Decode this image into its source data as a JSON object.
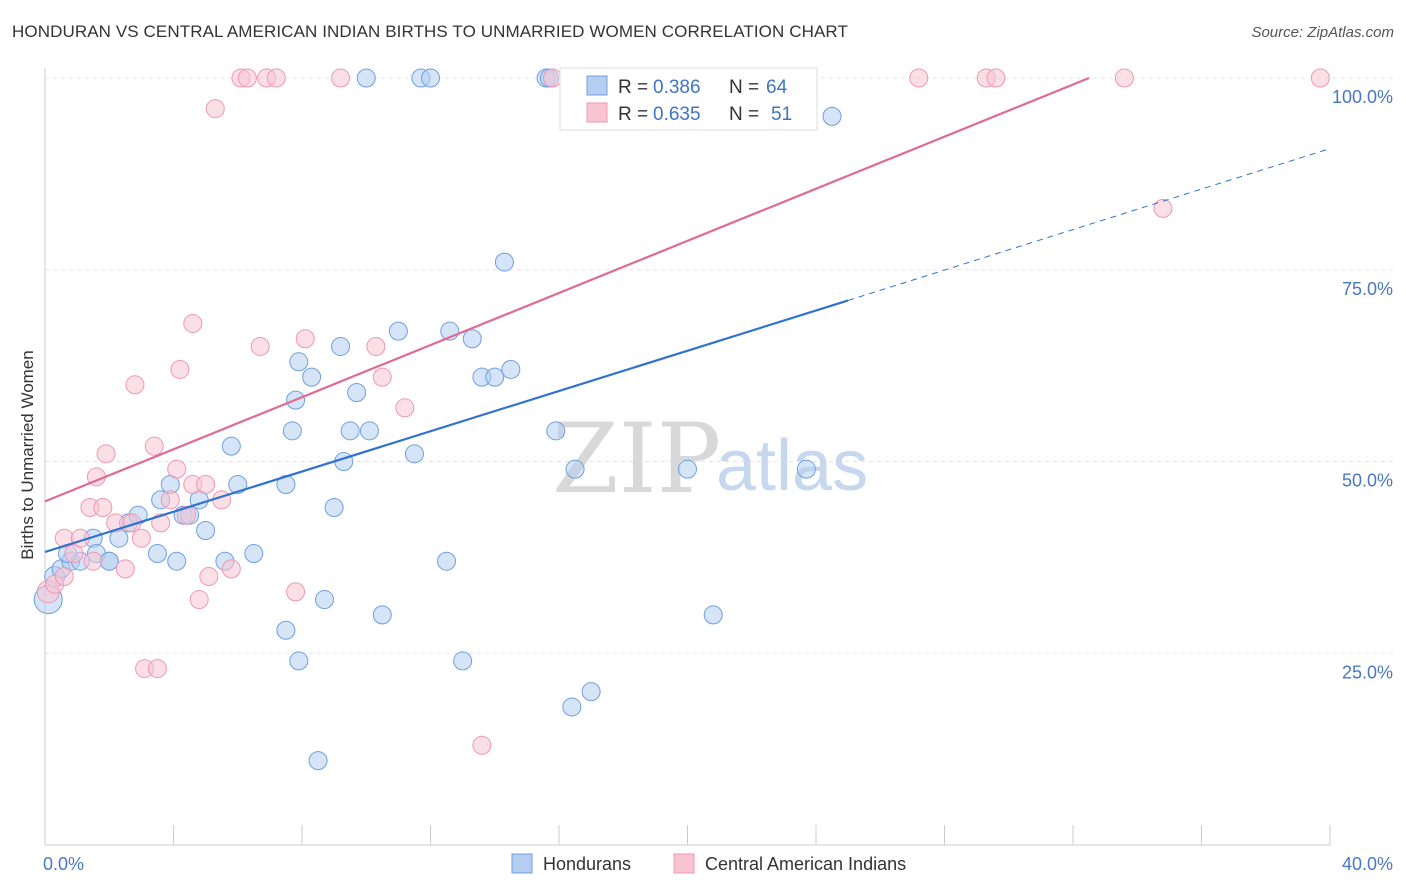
{
  "title": "HONDURAN VS CENTRAL AMERICAN INDIAN BIRTHS TO UNMARRIED WOMEN CORRELATION CHART",
  "source": "Source: ZipAtlas.com",
  "watermark": {
    "zip": "ZIP",
    "atlas": "atlas"
  },
  "chart_data": {
    "type": "scatter",
    "title": "HONDURAN VS CENTRAL AMERICAN INDIAN BIRTHS TO UNMARRIED WOMEN CORRELATION CHART",
    "xlabel": "",
    "ylabel": "Births to Unmarried Women",
    "xlim": [
      0,
      40
    ],
    "ylim": [
      0,
      100
    ],
    "x_tick_labels": [
      "0.0%",
      "40.0%"
    ],
    "y_ticks": [
      25,
      50,
      75,
      100
    ],
    "y_tick_labels": [
      "25.0%",
      "50.0%",
      "75.0%",
      "100.0%"
    ],
    "legend_stats": [
      {
        "r_label": "R =",
        "r_value": "0.386",
        "n_label": "N =",
        "n_value": "64"
      },
      {
        "r_label": "R =",
        "r_value": "0.635",
        "n_label": "N =",
        "n_value": "51"
      }
    ],
    "series": [
      {
        "name": "Hondurans",
        "color": "#6f9fe0",
        "fill": "#b5cdf1",
        "line_color": "#2f72cf",
        "r": 0.386,
        "n": 64,
        "trend": {
          "x0": 0,
          "y0": 38.2,
          "x1": 25,
          "y1": 71.0,
          "dash_x1": 40,
          "dash_y1": 90.8
        },
        "points": [
          [
            0.1,
            32,
            14
          ],
          [
            0.3,
            35,
            10
          ],
          [
            0.5,
            36,
            9
          ],
          [
            0.8,
            37,
            9
          ],
          [
            1.1,
            37,
            9
          ],
          [
            1.5,
            40,
            9
          ],
          [
            1.6,
            38,
            9
          ],
          [
            2.0,
            37,
            9
          ],
          [
            2.3,
            40,
            9
          ],
          [
            2.6,
            42,
            9
          ],
          [
            2.9,
            43,
            9
          ],
          [
            3.5,
            38,
            9
          ],
          [
            3.6,
            45,
            9
          ],
          [
            3.9,
            47,
            9
          ],
          [
            4.3,
            43,
            9
          ],
          [
            4.5,
            43,
            9
          ],
          [
            4.8,
            45,
            9
          ],
          [
            5.0,
            41,
            9
          ],
          [
            5.8,
            52,
            9
          ],
          [
            5.6,
            37,
            9
          ],
          [
            6.0,
            47,
            9
          ],
          [
            6.5,
            38,
            9
          ],
          [
            7.5,
            47,
            9
          ],
          [
            7.8,
            58,
            9
          ],
          [
            7.7,
            54,
            9
          ],
          [
            7.9,
            63,
            9
          ],
          [
            8.3,
            61,
            9
          ],
          [
            9.3,
            50,
            9
          ],
          [
            7.5,
            28,
            9
          ],
          [
            7.9,
            24,
            9
          ],
          [
            8.5,
            11,
            9
          ],
          [
            8.7,
            32,
            9
          ],
          [
            9.0,
            44,
            9
          ],
          [
            9.2,
            65,
            9
          ],
          [
            9.5,
            54,
            9
          ],
          [
            9.7,
            59,
            9
          ],
          [
            10.1,
            54,
            9
          ],
          [
            10.5,
            30,
            9
          ],
          [
            11.0,
            67,
            9
          ],
          [
            11.5,
            51,
            9
          ],
          [
            12.5,
            37,
            9
          ],
          [
            12.6,
            67,
            9
          ],
          [
            13.0,
            24,
            9
          ],
          [
            13.3,
            66,
            9
          ],
          [
            13.6,
            61,
            9
          ],
          [
            14.0,
            61,
            9
          ],
          [
            14.3,
            76,
            9
          ],
          [
            14.5,
            62,
            9
          ],
          [
            15.9,
            54,
            9
          ],
          [
            16.5,
            49,
            9
          ],
          [
            16.4,
            18,
            9
          ],
          [
            17.0,
            20,
            9
          ],
          [
            20.0,
            49,
            9
          ],
          [
            20.8,
            30,
            9
          ],
          [
            23.7,
            49,
            9
          ],
          [
            24.5,
            95,
            9
          ],
          [
            10.0,
            100,
            9
          ],
          [
            11.7,
            100,
            9
          ],
          [
            12.0,
            100,
            9
          ],
          [
            15.6,
            100,
            9
          ],
          [
            15.7,
            100,
            9
          ],
          [
            2.0,
            37,
            9
          ],
          [
            4.1,
            37,
            9
          ],
          [
            0.7,
            38,
            9
          ]
        ]
      },
      {
        "name": "Central American Indians",
        "color": "#ef97b4",
        "fill": "#f8c4d4",
        "line_color": "#e06a92",
        "r": 0.635,
        "n": 51,
        "trend": {
          "x0": 0,
          "y0": 44.8,
          "x1": 32.5,
          "y1": 100
        },
        "points": [
          [
            0.1,
            33,
            11
          ],
          [
            0.3,
            34,
            9
          ],
          [
            0.6,
            35,
            9
          ],
          [
            0.6,
            40,
            9
          ],
          [
            0.9,
            38,
            9
          ],
          [
            1.1,
            40,
            9
          ],
          [
            1.4,
            44,
            9
          ],
          [
            1.5,
            37,
            9
          ],
          [
            1.6,
            48,
            9
          ],
          [
            1.8,
            44,
            9
          ],
          [
            1.9,
            51,
            9
          ],
          [
            2.2,
            42,
            9
          ],
          [
            2.5,
            36,
            9
          ],
          [
            2.7,
            42,
            9
          ],
          [
            2.8,
            60,
            9
          ],
          [
            3.0,
            40,
            9
          ],
          [
            3.1,
            23,
            9
          ],
          [
            3.4,
            52,
            9
          ],
          [
            3.5,
            23,
            9
          ],
          [
            3.6,
            42,
            9
          ],
          [
            3.9,
            45,
            9
          ],
          [
            4.1,
            49,
            9
          ],
          [
            4.2,
            62,
            9
          ],
          [
            4.4,
            43,
            9
          ],
          [
            4.6,
            47,
            9
          ],
          [
            4.6,
            68,
            9
          ],
          [
            4.8,
            32,
            9
          ],
          [
            5.1,
            35,
            9
          ],
          [
            5.0,
            47,
            9
          ],
          [
            5.3,
            96,
            9
          ],
          [
            5.5,
            45,
            9
          ],
          [
            5.8,
            36,
            9
          ],
          [
            6.1,
            100,
            9
          ],
          [
            6.3,
            100,
            9
          ],
          [
            6.7,
            65,
            9
          ],
          [
            6.9,
            100,
            9
          ],
          [
            7.2,
            100,
            9
          ],
          [
            7.8,
            33,
            9
          ],
          [
            8.1,
            66,
            9
          ],
          [
            9.2,
            100,
            9
          ],
          [
            10.3,
            65,
            9
          ],
          [
            10.5,
            61,
            9
          ],
          [
            11.2,
            57,
            9
          ],
          [
            13.6,
            13,
            9
          ],
          [
            15.8,
            100,
            9
          ],
          [
            27.2,
            100,
            9
          ],
          [
            29.3,
            100,
            9
          ],
          [
            29.6,
            100,
            9
          ],
          [
            33.6,
            100,
            9
          ],
          [
            34.8,
            83,
            9
          ],
          [
            39.7,
            100,
            9
          ]
        ]
      }
    ]
  }
}
